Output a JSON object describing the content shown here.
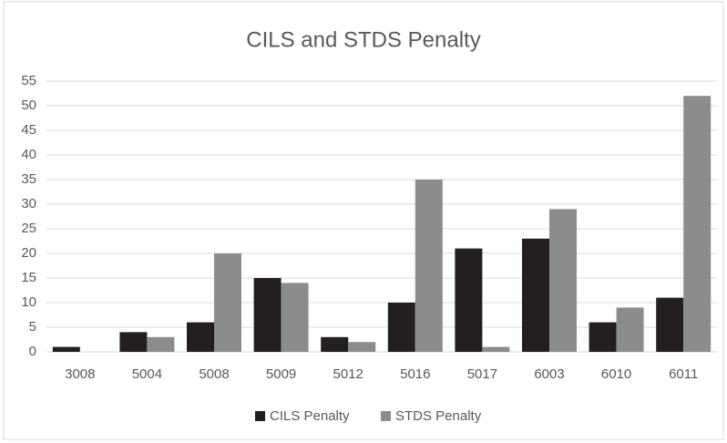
{
  "chart_data": {
    "type": "bar",
    "title": "CILS and STDS Penalty",
    "categories": [
      "3008",
      "5004",
      "5008",
      "5009",
      "5012",
      "5016",
      "5017",
      "6003",
      "6010",
      "6011"
    ],
    "series": [
      {
        "name": "CILS Penalty",
        "color": "#231f20",
        "values": [
          1,
          4,
          6,
          15,
          3,
          10,
          21,
          23,
          6,
          11
        ]
      },
      {
        "name": "STDS Penalty",
        "color": "#8c8c8c",
        "values": [
          0,
          3,
          20,
          14,
          2,
          35,
          1,
          29,
          9,
          52
        ]
      }
    ],
    "ylim": [
      0,
      55
    ],
    "yticks": [
      0,
      5,
      10,
      15,
      20,
      25,
      30,
      35,
      40,
      45,
      50,
      55
    ],
    "grid": true,
    "legend": "bottom"
  }
}
